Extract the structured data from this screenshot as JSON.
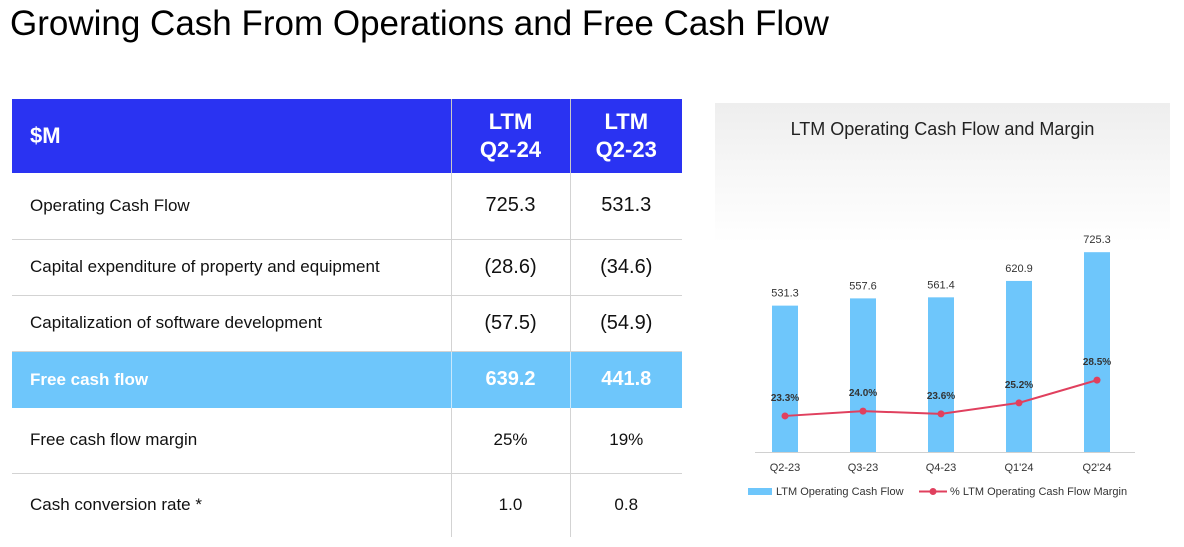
{
  "page_title": "Growing Cash From Operations and Free Cash Flow",
  "table": {
    "header": {
      "metric": "$M",
      "col1_line1": "LTM",
      "col1_line2": "Q2-24",
      "col2_line1": "LTM",
      "col2_line2": "Q2-23"
    },
    "rows": [
      {
        "label": "Operating Cash Flow",
        "q2_24": "725.3",
        "q2_23": "531.3"
      },
      {
        "label": "Capital expenditure of property and equipment",
        "q2_24": "(28.6)",
        "q2_23": "(34.6)"
      },
      {
        "label": "Capitalization of software development",
        "q2_24": "(57.5)",
        "q2_23": "(54.9)"
      },
      {
        "label": "Free cash flow",
        "q2_24": "639.2",
        "q2_23": "441.8"
      },
      {
        "label": "Free cash flow margin",
        "q2_24": "25%",
        "q2_23": "19%"
      },
      {
        "label": "Cash conversion rate *",
        "q2_24": "1.0",
        "q2_23": "0.8"
      }
    ]
  },
  "colors": {
    "header_bg": "#2a33f2",
    "highlight_bg": "#6ec6fb",
    "bar": "#6ec6fb",
    "line": "#e0405e"
  },
  "chart_data": {
    "type": "bar+line",
    "title": "LTM Operating Cash Flow and Margin",
    "categories": [
      "Q2-23",
      "Q3-23",
      "Q4-23",
      "Q1'24",
      "Q2'24"
    ],
    "series": [
      {
        "name": "LTM Operating Cash Flow",
        "type": "bar",
        "values": [
          531.3,
          557.6,
          561.4,
          620.9,
          725.3
        ],
        "labels": [
          "531.3",
          "557.6",
          "561.4",
          "620.9",
          "725.3"
        ]
      },
      {
        "name": "% LTM Operating Cash Flow Margin",
        "type": "line",
        "values": [
          23.3,
          24.0,
          23.6,
          25.2,
          28.5
        ],
        "labels": [
          "23.3%",
          "24.0%",
          "23.6%",
          "25.2%",
          "28.5%"
        ]
      }
    ],
    "bar_ylim": [
      0,
      800
    ],
    "line_ylim": [
      0,
      30
    ],
    "legend_position": "bottom",
    "grid": false
  }
}
